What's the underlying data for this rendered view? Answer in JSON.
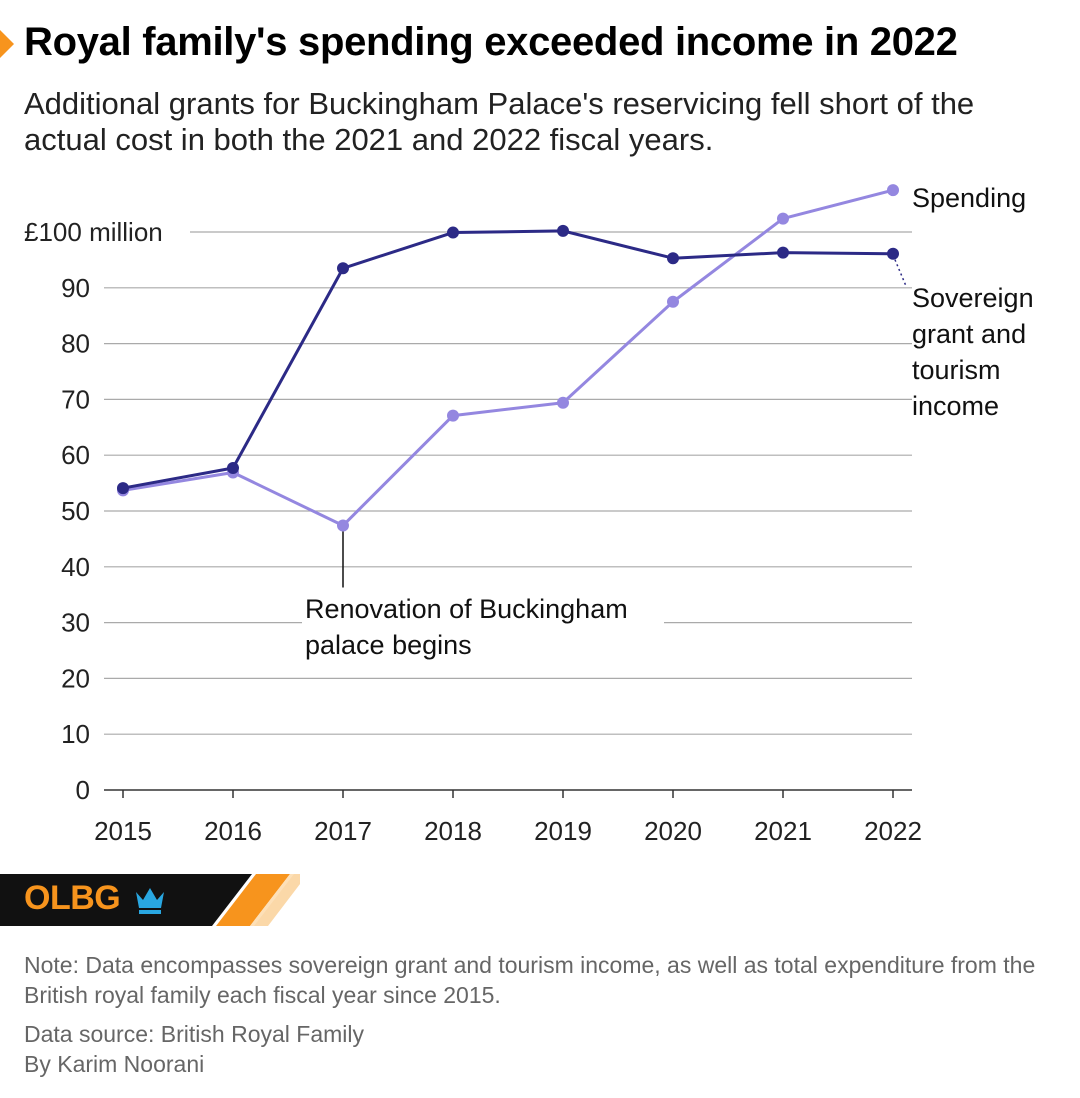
{
  "header": {
    "title": "Royal family's spending exceeded income in 2022",
    "subtitle": "Additional grants for Buckingham Palace's reservicing fell short of the actual cost in both the 2021 and 2022 fiscal years."
  },
  "chart_data": {
    "type": "line",
    "x": [
      "2015",
      "2016",
      "2017",
      "2018",
      "2019",
      "2020",
      "2021",
      "2022"
    ],
    "ylim": [
      0,
      100
    ],
    "yticks": [
      0,
      10,
      20,
      30,
      40,
      50,
      60,
      70,
      80,
      90,
      100
    ],
    "ytick_labels": [
      "0",
      "10",
      "20",
      "30",
      "40",
      "50",
      "60",
      "70",
      "80",
      "90",
      "£100 million"
    ],
    "grid": true,
    "series": [
      {
        "name": "Spending",
        "color": "#9487e0",
        "values": [
          53.7,
          56.9,
          47.4,
          67.1,
          69.4,
          87.5,
          102.4,
          107.5
        ]
      },
      {
        "name": "Sovereign grant and tourism income",
        "color": "#2c2a86",
        "values": [
          54.1,
          57.7,
          93.5,
          99.9,
          100.2,
          95.3,
          96.3,
          96.1
        ]
      }
    ],
    "annotations": [
      {
        "text_lines": [
          "Renovation of Buckingham",
          "palace begins"
        ],
        "x": "2017"
      }
    ],
    "series_labels": {
      "spending": [
        "Spending"
      ],
      "income": [
        "Sovereign",
        "grant and",
        "tourism",
        "income"
      ]
    }
  },
  "branding": {
    "logo": "OLBG",
    "icon": "crown-icon",
    "accent": "#f7941d"
  },
  "footer": {
    "note": "Note: Data encompasses sovereign grant and tourism income, as well as total expenditure from the British royal family each fiscal year since 2015.",
    "source": "Data source: British Royal Family",
    "byline": "By Karim Noorani"
  }
}
